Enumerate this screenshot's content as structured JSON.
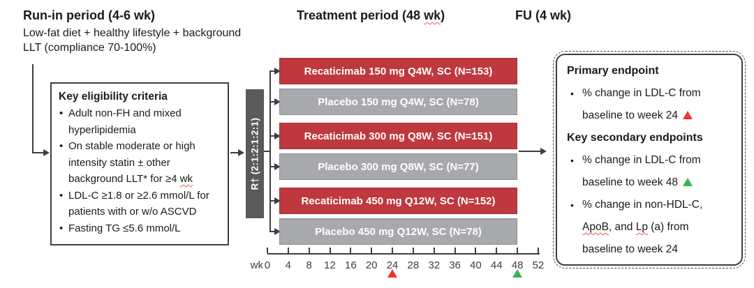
{
  "header": {
    "runin_title": "Run-in period (4-6 wk)",
    "runin_subtitle": "Low-fat diet + healthy lifestyle + background LLT (compliance 70-100%)",
    "treatment_title": "Treatment period (48 [[wk]])",
    "fu_title": "FU (4 wk)"
  },
  "eligibility_box": {
    "title": "Key eligibility criteria",
    "bullets": [
      "Adult non-FH and mixed hyperlipidemia",
      "On stable moderate or high intensity statin ± other background LLT* for ≥4 [[wk]]",
      "LDL-C ≥1.8 or ≥2.6 mmol/L for patients with or w/o ASCVD",
      "Fasting TG ≤5.6 mmol/L"
    ]
  },
  "randomization": {
    "label": "R† (2:1:2:1:2:1)"
  },
  "arms": [
    {
      "label": "Recaticimab 150 mg Q4W, SC (N=153)",
      "group": "active"
    },
    {
      "label": "Placebo 150 mg Q4W, SC (N=78)",
      "group": "placebo"
    },
    {
      "label": "Recaticimab 300 mg Q8W, SC (N=151)",
      "group": "active"
    },
    {
      "label": "Placebo 300 mg Q8W, SC (N=77)",
      "group": "placebo"
    },
    {
      "label": "Recaticimab 450 mg Q12W, SC (N=152)",
      "group": "active"
    },
    {
      "label": "Placebo 450 mg Q12W, SC (N=78)",
      "group": "placebo"
    }
  ],
  "timeline": {
    "unit": "wk",
    "tick_weeks": [
      0,
      4,
      8,
      12,
      16,
      20,
      24,
      28,
      32,
      36,
      40,
      44,
      48,
      52
    ],
    "markers": [
      {
        "week": 24,
        "color_name": "red"
      },
      {
        "week": 48,
        "color_name": "green"
      }
    ]
  },
  "endpoints_box": {
    "sections": [
      {
        "title": "Primary endpoint",
        "bullets": [
          {
            "text": "% change in LDL-C from baseline to week 24",
            "marker": "red-triangle"
          }
        ]
      },
      {
        "title": "Key secondary endpoints",
        "bullets": [
          {
            "text": "% change in LDL-C from baseline to week 48",
            "marker": "green-triangle"
          },
          {
            "text": "% change in non-HDL-C, [[ApoB]], and [[Lp]] (a) from baseline to week 24",
            "marker": null
          }
        ]
      }
    ]
  },
  "colors": {
    "active_arm": "#BE383E",
    "placebo_arm": "#A7A9AC",
    "randomization_bar": "#595A5C",
    "marker_red": "#EA372C",
    "marker_green": "#3BB54A",
    "squiggle": "#E65A50",
    "line": "#3E3E3E"
  }
}
